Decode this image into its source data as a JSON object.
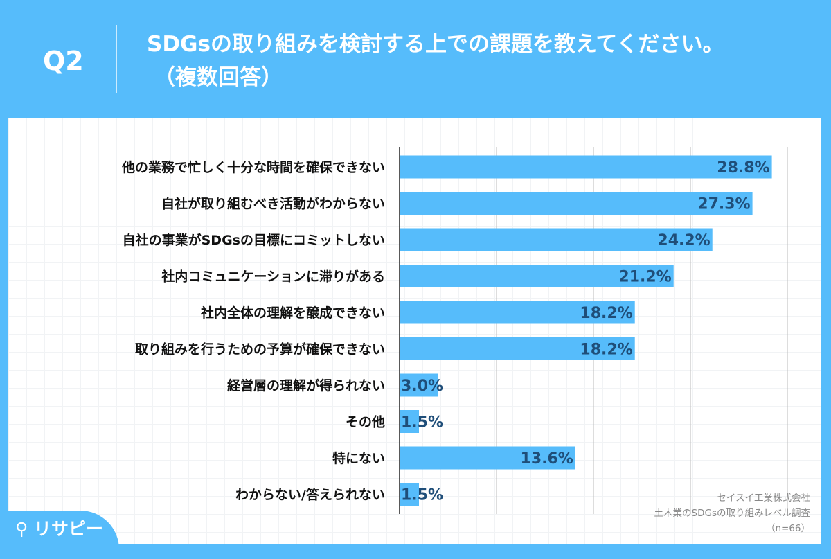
{
  "header": {
    "question": "Q2",
    "title": "SDGsの取り組みを検討する上での課題を教えてください。",
    "subtitle": "（複数回答）"
  },
  "chart_data": {
    "type": "bar",
    "orientation": "horizontal",
    "categories": [
      "他の業務で忙しく十分な時間を確保できない",
      "自社が取り組むべき活動がわからない",
      "自社の事業がSDGsの目標にコミットしない",
      "社内コミュニケーションに滞りがある",
      "社内全体の理解を醸成できない",
      "取り組みを行うための予算が確保できない",
      "経営層の理解が得られない",
      "その他",
      "特にない",
      "わからない/答えられない"
    ],
    "values": [
      28.8,
      27.3,
      24.2,
      21.2,
      18.2,
      18.2,
      3.0,
      1.5,
      13.6,
      1.5
    ],
    "value_labels": [
      "28.8%",
      "27.3%",
      "24.2%",
      "21.2%",
      "18.2%",
      "18.2%",
      "3.0%",
      "1.5%",
      "13.6%",
      "1.5%"
    ],
    "xlim": [
      0,
      30
    ],
    "grid_step": 7.5,
    "grid": true,
    "bar_color": "#56bcfb"
  },
  "source": {
    "company": "セイスイ工業株式会社",
    "survey": "土木業のSDGsの取り組みレベル調査",
    "n": "（n=66）"
  },
  "logo": "リサピー"
}
